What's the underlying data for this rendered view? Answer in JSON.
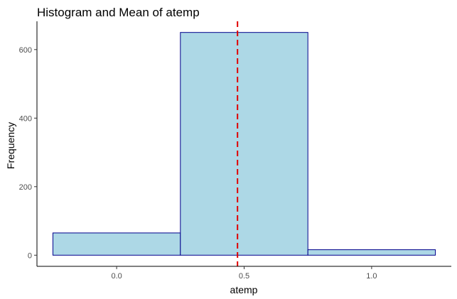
{
  "chart_data": {
    "type": "bar",
    "title": "Histogram and Mean of  atemp",
    "xlabel": "atemp",
    "ylabel": "Frequency",
    "bins": [
      {
        "x_start": -0.25,
        "x_end": 0.25,
        "count": 65
      },
      {
        "x_start": 0.25,
        "x_end": 0.75,
        "count": 650
      },
      {
        "x_start": 0.75,
        "x_end": 1.25,
        "count": 16
      }
    ],
    "mean": 0.474,
    "xlim": [
      -0.3125,
      1.3125
    ],
    "ylim": [
      -32.5,
      682.5
    ],
    "x_ticks": [
      0.0,
      0.5,
      1.0
    ],
    "x_tick_labels": [
      "0.0",
      "0.5",
      "1.0"
    ],
    "y_ticks": [
      0,
      200,
      400,
      600
    ],
    "y_tick_labels": [
      "0",
      "200",
      "400",
      "600"
    ],
    "grid": false,
    "colors": {
      "bar_fill": "#add8e6",
      "bar_stroke": "#00008b",
      "mean_line": "#e00000",
      "axis": "#000000",
      "tick_label": "#4d4d4d"
    }
  }
}
